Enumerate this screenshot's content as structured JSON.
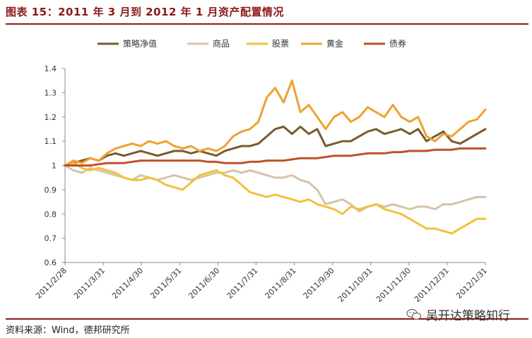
{
  "figure": {
    "title": "图表 15：2011 年 3 月到 2012 年 1 月资产配置情况",
    "source": "资料来源：Wind，德邦研究所",
    "watermark": "吴开达策略知行"
  },
  "chart_data": {
    "type": "line",
    "title": "",
    "xlabel": "",
    "ylabel": "",
    "ylim": [
      0.6,
      1.4
    ],
    "yticks": [
      0.6,
      0.7,
      0.8,
      0.9,
      1.0,
      1.1,
      1.2,
      1.3,
      1.4
    ],
    "ytick_labels": [
      "0.6",
      "0.7",
      "0.8",
      "0.9",
      "1",
      "1.1",
      "1.2",
      "1.3",
      "1.4"
    ],
    "xtick_labels": [
      "2011/2/28",
      "2011/3/31",
      "2011/4/30",
      "2011/5/31",
      "2011/6/30",
      "2011/7/31",
      "2011/8/31",
      "2011/9/30",
      "2011/10/31",
      "2011/11/30",
      "2011/12/31",
      "2012/1/31"
    ],
    "grid": false,
    "legend_position": "top",
    "series": [
      {
        "name": "策略净值",
        "color": "#7a5a2e",
        "values": [
          1.0,
          1.01,
          1.02,
          1.03,
          1.02,
          1.04,
          1.05,
          1.04,
          1.05,
          1.06,
          1.05,
          1.04,
          1.05,
          1.06,
          1.06,
          1.05,
          1.06,
          1.05,
          1.04,
          1.06,
          1.07,
          1.08,
          1.08,
          1.09,
          1.12,
          1.15,
          1.16,
          1.13,
          1.16,
          1.13,
          1.15,
          1.08,
          1.09,
          1.1,
          1.1,
          1.12,
          1.14,
          1.15,
          1.13,
          1.14,
          1.15,
          1.13,
          1.15,
          1.1,
          1.12,
          1.14,
          1.1,
          1.09,
          1.11,
          1.13,
          1.15
        ]
      },
      {
        "name": "商品",
        "color": "#d4c4a8",
        "values": [
          1.0,
          0.98,
          0.97,
          0.99,
          0.98,
          0.97,
          0.96,
          0.95,
          0.94,
          0.96,
          0.95,
          0.94,
          0.95,
          0.96,
          0.95,
          0.94,
          0.95,
          0.96,
          0.97,
          0.97,
          0.98,
          0.97,
          0.98,
          0.97,
          0.96,
          0.95,
          0.95,
          0.96,
          0.94,
          0.93,
          0.9,
          0.84,
          0.85,
          0.86,
          0.84,
          0.81,
          0.83,
          0.84,
          0.83,
          0.84,
          0.83,
          0.82,
          0.83,
          0.83,
          0.82,
          0.84,
          0.84,
          0.85,
          0.86,
          0.87,
          0.87
        ]
      },
      {
        "name": "股票",
        "color": "#f2c13a",
        "values": [
          1.0,
          1.01,
          0.99,
          0.98,
          0.99,
          0.98,
          0.97,
          0.95,
          0.94,
          0.94,
          0.95,
          0.94,
          0.92,
          0.91,
          0.9,
          0.93,
          0.96,
          0.97,
          0.98,
          0.96,
          0.95,
          0.92,
          0.89,
          0.88,
          0.87,
          0.88,
          0.87,
          0.86,
          0.85,
          0.86,
          0.84,
          0.83,
          0.82,
          0.8,
          0.83,
          0.82,
          0.83,
          0.84,
          0.82,
          0.81,
          0.8,
          0.78,
          0.76,
          0.74,
          0.74,
          0.73,
          0.72,
          0.74,
          0.76,
          0.78,
          0.78
        ]
      },
      {
        "name": "黄金",
        "color": "#f0a030",
        "values": [
          1.0,
          1.02,
          1.01,
          1.03,
          1.02,
          1.05,
          1.07,
          1.08,
          1.09,
          1.08,
          1.1,
          1.09,
          1.1,
          1.08,
          1.07,
          1.08,
          1.06,
          1.07,
          1.06,
          1.08,
          1.12,
          1.14,
          1.15,
          1.18,
          1.28,
          1.32,
          1.26,
          1.35,
          1.22,
          1.25,
          1.2,
          1.15,
          1.2,
          1.22,
          1.18,
          1.2,
          1.24,
          1.22,
          1.2,
          1.25,
          1.2,
          1.18,
          1.2,
          1.12,
          1.1,
          1.13,
          1.12,
          1.15,
          1.18,
          1.19,
          1.23
        ]
      },
      {
        "name": "债券",
        "color": "#c0502a",
        "values": [
          1.0,
          1.0,
          1.0,
          1.0,
          1.005,
          1.01,
          1.01,
          1.01,
          1.015,
          1.02,
          1.02,
          1.02,
          1.02,
          1.02,
          1.02,
          1.02,
          1.02,
          1.015,
          1.015,
          1.01,
          1.01,
          1.01,
          1.015,
          1.015,
          1.02,
          1.02,
          1.02,
          1.025,
          1.03,
          1.03,
          1.03,
          1.035,
          1.04,
          1.04,
          1.04,
          1.045,
          1.05,
          1.05,
          1.05,
          1.055,
          1.055,
          1.06,
          1.06,
          1.06,
          1.065,
          1.065,
          1.065,
          1.07,
          1.07,
          1.07,
          1.07
        ]
      }
    ]
  }
}
